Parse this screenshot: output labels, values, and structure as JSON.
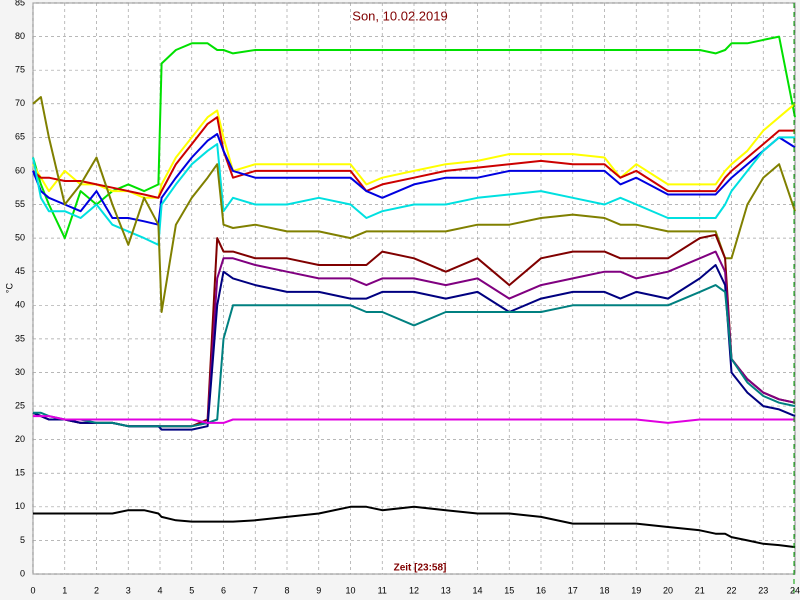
{
  "chart_data": {
    "type": "line",
    "title": "Son, 10.02.2019",
    "x_label": "Zeit [23:58]",
    "y_label": "°C",
    "x": [
      0,
      0.25,
      0.5,
      1,
      1.5,
      2,
      2.5,
      3,
      3.5,
      3.95,
      4.05,
      4.5,
      5,
      5.5,
      5.8,
      6,
      6.3,
      7,
      8,
      9,
      10,
      10.5,
      11,
      12,
      13,
      14,
      15,
      16,
      17,
      18,
      18.5,
      19,
      20,
      21,
      21.5,
      21.8,
      22,
      22.5,
      23,
      23.5,
      24
    ],
    "xlim": [
      0,
      24
    ],
    "xticks": [
      0,
      1,
      2,
      3,
      4,
      5,
      6,
      7,
      8,
      9,
      10,
      11,
      12,
      13,
      14,
      15,
      16,
      17,
      18,
      19,
      20,
      21,
      22,
      23,
      24
    ],
    "ylim": [
      0,
      85
    ],
    "yticks": [
      0,
      5,
      10,
      15,
      20,
      25,
      30,
      35,
      40,
      45,
      50,
      55,
      60,
      65,
      70,
      75,
      80,
      85
    ],
    "grid": true,
    "series": [
      {
        "color": "#00e000",
        "values": [
          62,
          58,
          55,
          50,
          57,
          55,
          57,
          58,
          57,
          58,
          76,
          78,
          79,
          79,
          78,
          78,
          77.5,
          78,
          78,
          78,
          78,
          78,
          78,
          78,
          78,
          78,
          78,
          78,
          78,
          78,
          78,
          78,
          78,
          78,
          77.5,
          78,
          79,
          79,
          79.5,
          80,
          68
        ]
      },
      {
        "color": "#ffff00",
        "values": [
          61,
          59,
          57,
          60,
          58,
          58,
          57,
          57,
          56,
          56,
          58,
          62,
          65,
          68,
          69,
          65,
          60,
          61,
          61,
          61,
          61,
          58,
          59,
          60,
          61,
          61.5,
          62.5,
          62.5,
          62.5,
          62,
          59,
          61,
          58,
          58,
          58,
          60,
          61,
          63,
          66,
          68,
          70
        ]
      },
      {
        "color": "#cc0000",
        "values": [
          60,
          59,
          59,
          58.5,
          58.5,
          58,
          57.5,
          57,
          56.5,
          56,
          57,
          61,
          64,
          67,
          68,
          63,
          59,
          60,
          60,
          60,
          60,
          57,
          58,
          59,
          60,
          60.5,
          61,
          61.5,
          61,
          61,
          59,
          60,
          57,
          57,
          57,
          59,
          60,
          62,
          64,
          66,
          66
        ]
      },
      {
        "color": "#0000e0",
        "values": [
          60,
          57,
          56,
          55,
          54,
          57,
          53,
          53,
          52.5,
          52,
          56,
          59,
          62,
          64.5,
          65.5,
          63,
          60,
          59,
          59,
          59,
          59,
          57,
          56,
          58,
          59,
          59,
          60,
          60,
          60,
          60,
          58,
          59,
          56.5,
          56.5,
          56.5,
          58,
          59,
          61,
          63,
          65,
          63.5
        ]
      },
      {
        "color": "#00e0e0",
        "values": [
          62,
          56,
          54,
          54,
          53,
          55,
          52,
          51,
          50,
          49,
          55,
          58,
          61,
          63,
          64,
          54,
          56,
          55,
          55,
          56,
          55,
          53,
          54,
          55,
          55,
          56,
          56.5,
          57,
          56,
          55,
          56,
          55,
          53,
          53,
          53,
          55,
          57,
          60,
          63,
          65,
          65
        ]
      },
      {
        "color": "#808000",
        "values": [
          70,
          71,
          65,
          55,
          58,
          62,
          55,
          49,
          56,
          52,
          39,
          52,
          56,
          59,
          61,
          52,
          51.5,
          52,
          51,
          51,
          50,
          51,
          51,
          51,
          51,
          52,
          52,
          53,
          53.5,
          53,
          52,
          52,
          51,
          51,
          51,
          47,
          47,
          55,
          59,
          61,
          54
        ]
      },
      {
        "color": "#800000",
        "values": [
          24,
          23.5,
          23,
          23,
          22.5,
          22.5,
          22.5,
          22,
          22,
          22,
          22,
          22,
          22,
          23,
          50,
          48,
          48,
          47,
          47,
          46,
          46,
          46,
          48,
          47,
          45,
          47,
          43,
          47,
          48,
          48,
          47,
          47,
          47,
          50,
          50.5,
          47,
          32,
          29,
          27,
          26,
          25.5
        ]
      },
      {
        "color": "#800080",
        "values": [
          24,
          23.5,
          23,
          23,
          22.5,
          22.5,
          22.5,
          22,
          22,
          22,
          22,
          22,
          22,
          22.5,
          44,
          47,
          47,
          46,
          45,
          44,
          44,
          43,
          44,
          44,
          43,
          44,
          41,
          43,
          44,
          45,
          45,
          44,
          45,
          47,
          48,
          45,
          32,
          29,
          27,
          26,
          25.5
        ]
      },
      {
        "color": "#000080",
        "values": [
          24,
          23.5,
          23,
          23,
          22.5,
          22.5,
          22.5,
          22,
          22,
          22,
          21.5,
          21.5,
          21.5,
          22,
          40,
          45,
          44,
          43,
          42,
          42,
          41,
          41,
          42,
          42,
          41,
          42,
          39,
          41,
          42,
          42,
          41,
          42,
          41,
          44,
          46,
          43,
          30,
          27,
          25,
          24.5,
          23.5
        ]
      },
      {
        "color": "#008080",
        "values": [
          24,
          24,
          23.5,
          23,
          23,
          22.5,
          22.5,
          22,
          22,
          22,
          22,
          22,
          22,
          22.5,
          23,
          35,
          40,
          40,
          40,
          40,
          40,
          39,
          39,
          37,
          39,
          39,
          39,
          39,
          40,
          40,
          40,
          40,
          40,
          42,
          43,
          42,
          32,
          28.5,
          26.5,
          25.5,
          25
        ]
      },
      {
        "color": "#e000e0",
        "values": [
          23.5,
          23.5,
          23.5,
          23,
          23,
          23,
          23,
          23,
          23,
          23,
          23,
          23,
          23,
          22.5,
          22.5,
          22.5,
          23,
          23,
          23,
          23,
          23,
          23,
          23,
          23,
          23,
          23,
          23,
          23,
          23,
          23,
          23,
          23,
          22.5,
          23,
          23,
          23,
          23,
          23,
          23,
          23,
          23
        ]
      },
      {
        "color": "#000000",
        "values": [
          9,
          9,
          9,
          9,
          9,
          9,
          9,
          9.5,
          9.5,
          9,
          8.5,
          8,
          7.8,
          7.8,
          7.8,
          7.8,
          7.8,
          8,
          8.5,
          9,
          10,
          10,
          9.5,
          10,
          9.5,
          9,
          9,
          8.5,
          7.5,
          7.5,
          7.5,
          7.5,
          7,
          6.5,
          6,
          6,
          5.5,
          5,
          4.5,
          4.3,
          4
        ]
      }
    ]
  }
}
